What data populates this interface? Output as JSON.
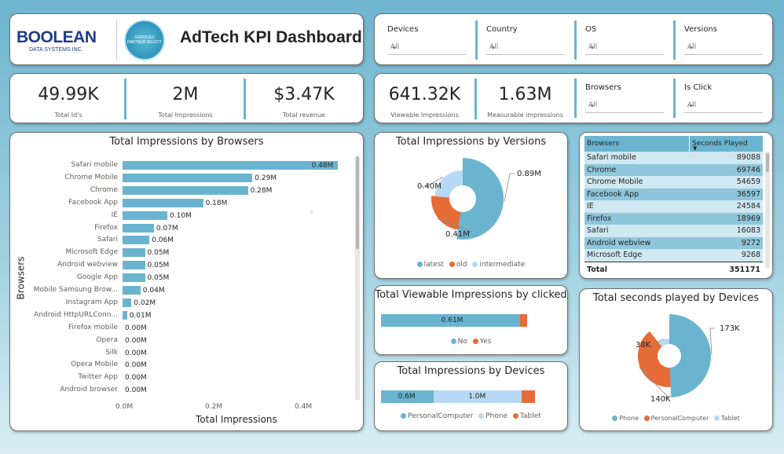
{
  "header": {
    "logo_text": "BOOLEAN",
    "logo_subtext": "DATA SYSTEMS INC.",
    "badge_text": "SERVICES PARTNER SELECT",
    "title": "AdTech KPI Dashboard"
  },
  "filters": [
    {
      "label": "Devices",
      "value": "All"
    },
    {
      "label": "Country",
      "value": "All"
    },
    {
      "label": "OS",
      "value": "All"
    },
    {
      "label": "Versions",
      "value": "All"
    }
  ],
  "filters2": [
    {
      "label": "Browsers",
      "value": "All"
    },
    {
      "label": "Is Click",
      "value": "All"
    }
  ],
  "kpis": [
    {
      "value": "49.99K",
      "label": "Total Id's"
    },
    {
      "value": "2M",
      "label": "Total Impressions"
    },
    {
      "value": "$3.47K",
      "label": "Total revenue"
    },
    {
      "value": "641.32K",
      "label": "Viewable Impressions"
    },
    {
      "value": "1.63M",
      "label": "Measurable impressions"
    }
  ],
  "browsers_chart": {
    "title": "Total Impressions by Browsers",
    "xlabel": "Total Impressions",
    "ylabel": "Browsers",
    "xticks": [
      "0.0M",
      "0.2M",
      "0.4M"
    ],
    "rows": [
      {
        "name": "Safari mobile",
        "value": 0.48,
        "label": "0.48M"
      },
      {
        "name": "Chrome Mobile",
        "value": 0.29,
        "label": "0.29M"
      },
      {
        "name": "Chrome",
        "value": 0.28,
        "label": "0.28M"
      },
      {
        "name": "Facebook App",
        "value": 0.18,
        "label": "0.18M"
      },
      {
        "name": "IE",
        "value": 0.1,
        "label": "0.10M"
      },
      {
        "name": "Firefox",
        "value": 0.07,
        "label": "0.07M"
      },
      {
        "name": "Safari",
        "value": 0.06,
        "label": "0.06M"
      },
      {
        "name": "Microsoft Edge",
        "value": 0.05,
        "label": "0.05M"
      },
      {
        "name": "Android webview",
        "value": 0.05,
        "label": "0.05M"
      },
      {
        "name": "Google App",
        "value": 0.05,
        "label": "0.05M"
      },
      {
        "name": "Mobile Samsung Brow...",
        "value": 0.04,
        "label": "0.04M"
      },
      {
        "name": "Instagram App",
        "value": 0.02,
        "label": "0.02M"
      },
      {
        "name": "Android HttpURLConn...",
        "value": 0.01,
        "label": "0.01M"
      },
      {
        "name": "Firefox mobile",
        "value": 0.0,
        "label": "0.00M"
      },
      {
        "name": "Opera",
        "value": 0.0,
        "label": "0.00M"
      },
      {
        "name": "Silk",
        "value": 0.0,
        "label": "0.00M"
      },
      {
        "name": "Opera Mobile",
        "value": 0.0,
        "label": "0.00M"
      },
      {
        "name": "Twitter App",
        "value": 0.0,
        "label": "0.00M"
      },
      {
        "name": "Android browser",
        "value": 0.0,
        "label": "0.00M"
      }
    ]
  },
  "versions_chart": {
    "title": "Total Impressions by Versions",
    "slices": [
      {
        "name": "latest",
        "value": 0.89,
        "label": "0.89M",
        "color": "#6ab4cf"
      },
      {
        "name": "old",
        "value": 0.41,
        "label": "0.41M",
        "color": "#e66c37"
      },
      {
        "name": "intermediate",
        "value": 0.4,
        "label": "0.40M",
        "color": "#b7d9f5"
      }
    ]
  },
  "viewable_chart": {
    "title": "Total Viewable Impressions by clicked",
    "segments": [
      {
        "name": "No",
        "value": 0.61,
        "label": "0.61M",
        "color": "#6ab4cf"
      },
      {
        "name": "Yes",
        "value": 0.03,
        "label": "",
        "color": "#e66c37"
      }
    ]
  },
  "devices_chart": {
    "title": "Total Impressions by Devices",
    "segments": [
      {
        "name": "PersonalComputer",
        "value": 0.6,
        "label": "0.6M",
        "color": "#6ab4cf"
      },
      {
        "name": "Phone",
        "value": 1.0,
        "label": "1.0M",
        "color": "#b7d9f5"
      },
      {
        "name": "Tablet",
        "value": 0.15,
        "label": "",
        "color": "#e66c37"
      }
    ]
  },
  "browser_table": {
    "col1": "Browsers",
    "col2": "Seconds Played",
    "rows": [
      {
        "name": "Safari mobile",
        "value": "89088"
      },
      {
        "name": "Chrome",
        "value": "69746"
      },
      {
        "name": "Chrome Mobile",
        "value": "54659"
      },
      {
        "name": "Facebook App",
        "value": "36597"
      },
      {
        "name": "IE",
        "value": "24584"
      },
      {
        "name": "Firefox",
        "value": "18969"
      },
      {
        "name": "Safari",
        "value": "16083"
      },
      {
        "name": "Android webview",
        "value": "9272"
      },
      {
        "name": "Microsoft Edge",
        "value": "9268"
      }
    ],
    "total_label": "Total",
    "total_value": "351171"
  },
  "seconds_chart": {
    "title": "Total seconds played by Devices",
    "slices": [
      {
        "name": "Phone",
        "value": 173,
        "label": "173K",
        "color": "#6ab4cf"
      },
      {
        "name": "PersonalComputer",
        "value": 140,
        "label": "140K",
        "color": "#e66c37"
      },
      {
        "name": "Tablet",
        "value": 38,
        "label": "38K",
        "color": "#b7d9f5"
      }
    ]
  }
}
